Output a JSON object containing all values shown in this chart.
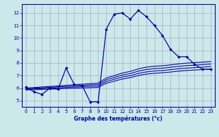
{
  "xlabel": "Graphe des températures (°c)",
  "background_color": "#cce8e8",
  "grid_color": "#aaaacc",
  "line_color": "#0000aa",
  "xlim": [
    -0.5,
    23.5
  ],
  "ylim": [
    4.5,
    12.7
  ],
  "xticks": [
    0,
    1,
    2,
    3,
    4,
    5,
    6,
    7,
    8,
    9,
    10,
    11,
    12,
    13,
    14,
    15,
    16,
    17,
    18,
    19,
    20,
    21,
    22,
    23
  ],
  "yticks": [
    5,
    6,
    7,
    8,
    9,
    10,
    11,
    12
  ],
  "hours": [
    0,
    1,
    2,
    3,
    4,
    5,
    6,
    7,
    8,
    9,
    10,
    11,
    12,
    13,
    14,
    15,
    16,
    17,
    18,
    19,
    20,
    21,
    22,
    23
  ],
  "temp_main": [
    6.1,
    5.7,
    5.5,
    6.0,
    5.9,
    7.6,
    6.3,
    6.2,
    4.9,
    4.9,
    10.7,
    11.9,
    12.0,
    11.5,
    12.2,
    11.7,
    11.0,
    10.2,
    9.1,
    8.5,
    8.5,
    7.9,
    7.5,
    7.5
  ],
  "temp_line2": [
    5.85,
    5.87,
    5.89,
    5.92,
    5.94,
    5.96,
    5.99,
    6.01,
    6.03,
    6.06,
    6.38,
    6.55,
    6.72,
    6.83,
    7.0,
    7.12,
    7.18,
    7.22,
    7.28,
    7.35,
    7.4,
    7.44,
    7.48,
    7.52
  ],
  "temp_line3": [
    5.9,
    5.93,
    5.96,
    5.99,
    6.02,
    6.05,
    6.08,
    6.11,
    6.14,
    6.17,
    6.52,
    6.7,
    6.88,
    6.99,
    7.17,
    7.29,
    7.36,
    7.4,
    7.47,
    7.54,
    7.59,
    7.63,
    7.67,
    7.72
  ],
  "temp_line4": [
    5.95,
    5.99,
    6.02,
    6.06,
    6.1,
    6.13,
    6.17,
    6.21,
    6.25,
    6.28,
    6.66,
    6.85,
    7.04,
    7.16,
    7.35,
    7.48,
    7.55,
    7.59,
    7.66,
    7.73,
    7.79,
    7.83,
    7.87,
    7.92
  ],
  "temp_line5": [
    6.0,
    6.04,
    6.09,
    6.13,
    6.17,
    6.22,
    6.26,
    6.31,
    6.35,
    6.4,
    6.8,
    7.0,
    7.2,
    7.33,
    7.53,
    7.67,
    7.74,
    7.78,
    7.85,
    7.93,
    7.99,
    8.03,
    8.07,
    8.12
  ]
}
